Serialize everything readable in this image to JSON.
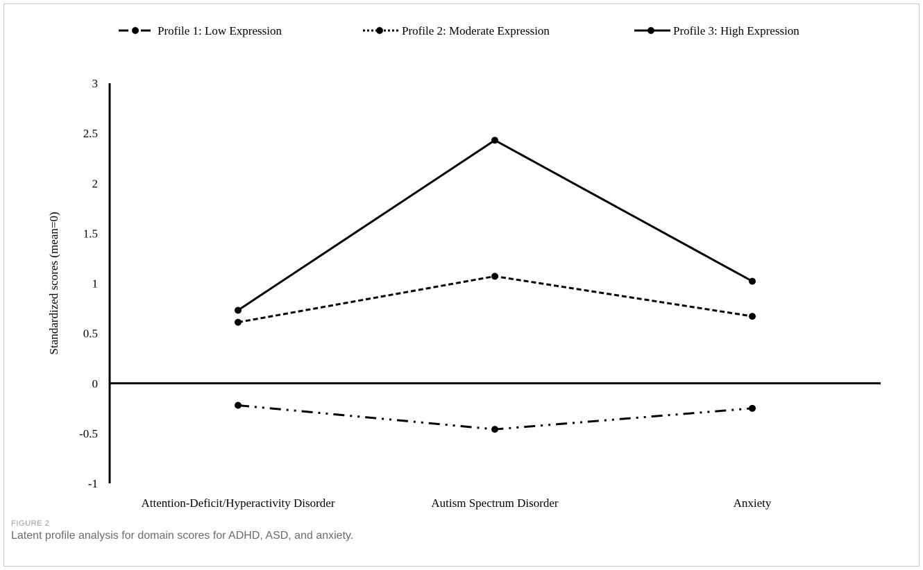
{
  "figure": {
    "label": "FIGURE 2",
    "caption": "Latent profile analysis for domain scores for ADHD, ASD, and anxiety."
  },
  "chart_data": {
    "type": "line",
    "title": "",
    "xlabel": "",
    "ylabel": "Standardized scores (mean=0)",
    "categories": [
      "Attention-Deficit/Hyperactivity Disorder",
      "Autism Spectrum Disorder",
      "Anxiety"
    ],
    "ylim": [
      -1,
      3
    ],
    "yticks": [
      -1,
      -0.5,
      0,
      0.5,
      1,
      1.5,
      2,
      2.5,
      3
    ],
    "grid": false,
    "legend_position": "top",
    "series": [
      {
        "name": "Profile 1: Low Expression",
        "values": [
          -0.22,
          -0.46,
          -0.25
        ],
        "line_style": "dash-dot-dot",
        "color": "#000000"
      },
      {
        "name": "Profile 2: Moderate Expression",
        "values": [
          0.61,
          1.07,
          0.67
        ],
        "line_style": "dashed",
        "color": "#000000"
      },
      {
        "name": "Profile 3: High Expression",
        "values": [
          0.73,
          2.43,
          1.02
        ],
        "line_style": "solid",
        "color": "#000000"
      }
    ]
  }
}
